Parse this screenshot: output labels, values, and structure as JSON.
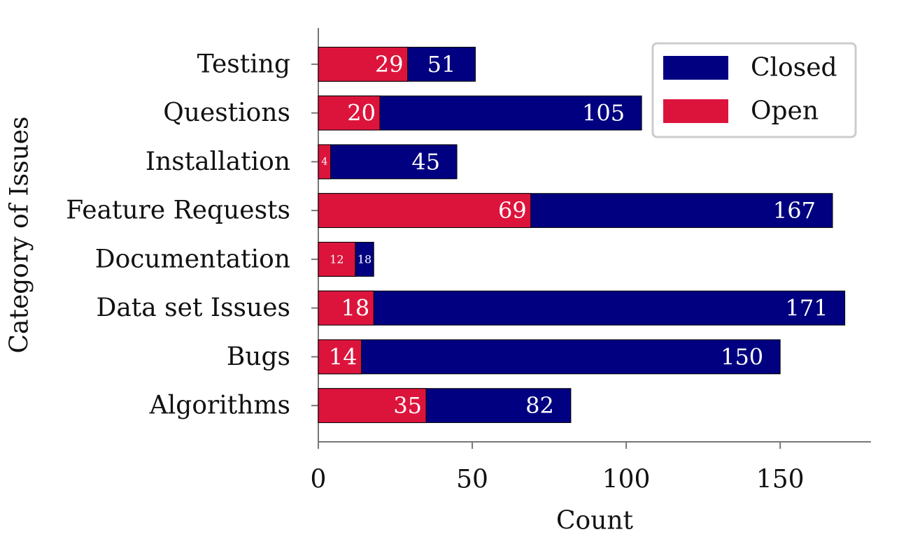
{
  "chart_data": {
    "type": "bar",
    "orientation": "horizontal",
    "x_label": "Count",
    "y_label": "Category of Issues",
    "categories": [
      "Testing",
      "Questions",
      "Installation",
      "Feature Requests",
      "Documentation",
      "Data set Issues",
      "Bugs",
      "Algorithms"
    ],
    "series": [
      {
        "name": "Closed",
        "color": "#000080",
        "values": [
          51,
          105,
          45,
          167,
          18,
          171,
          150,
          82
        ]
      },
      {
        "name": "Open",
        "color": "#dc143c",
        "values": [
          29,
          20,
          4,
          69,
          12,
          18,
          14,
          35
        ]
      }
    ],
    "xlim": [
      0,
      179.5
    ],
    "xticks": [
      0,
      50,
      100,
      150
    ],
    "legend": "upper right"
  }
}
